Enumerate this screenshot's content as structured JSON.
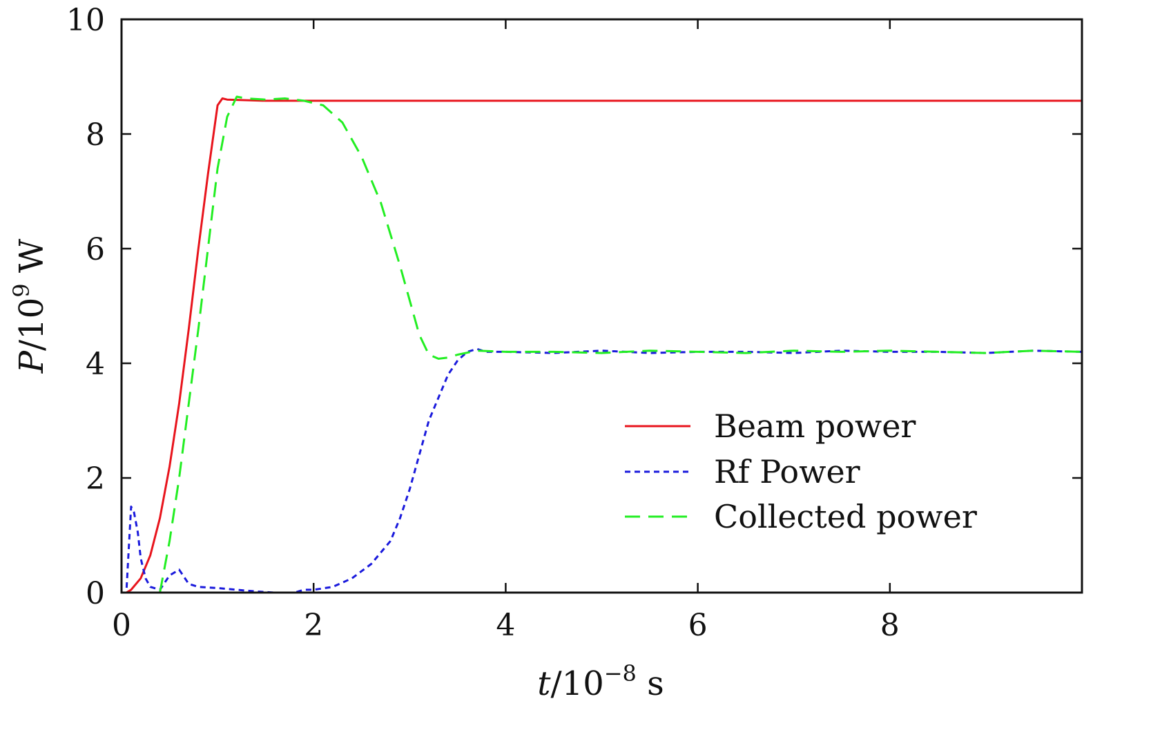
{
  "chart_data": {
    "type": "line",
    "title": "",
    "xlabel": {
      "var": "t",
      "unit": "/10",
      "exp": "−8",
      "suffix": " s"
    },
    "ylabel": {
      "var": "P",
      "unit": "/10",
      "exp": "9",
      "suffix": " W"
    },
    "xlim": [
      0,
      10
    ],
    "ylim": [
      0,
      10
    ],
    "x_ticks": [
      0,
      2,
      4,
      6,
      8
    ],
    "y_ticks": [
      0,
      2,
      4,
      6,
      8,
      10
    ],
    "grid": false,
    "legend_position": "lower-right",
    "series": [
      {
        "name": "Beam power",
        "color": "#e8141c",
        "dash": "solid",
        "x": [
          0,
          0.05,
          0.1,
          0.2,
          0.3,
          0.4,
          0.5,
          0.6,
          0.7,
          0.8,
          0.9,
          1.0,
          1.05,
          1.1,
          1.5,
          2.0,
          3.0,
          4.0,
          5.0,
          6.0,
          7.0,
          8.0,
          9.0,
          10.0
        ],
        "y": [
          0,
          0,
          0.05,
          0.25,
          0.65,
          1.3,
          2.2,
          3.3,
          4.6,
          6.0,
          7.3,
          8.5,
          8.62,
          8.6,
          8.58,
          8.58,
          8.58,
          8.58,
          8.58,
          8.58,
          8.58,
          8.58,
          8.58,
          8.58
        ]
      },
      {
        "name": "Rf Power",
        "color": "#1a1adc",
        "dash": "dotted",
        "x": [
          0,
          0.05,
          0.08,
          0.1,
          0.13,
          0.17,
          0.2,
          0.25,
          0.3,
          0.4,
          0.5,
          0.6,
          0.7,
          0.8,
          1.0,
          1.2,
          1.4,
          1.6,
          1.8,
          1.9,
          2.0,
          2.2,
          2.4,
          2.6,
          2.8,
          2.9,
          3.0,
          3.1,
          3.2,
          3.3,
          3.4,
          3.5,
          3.6,
          3.7,
          3.8,
          4.0,
          4.5,
          5.0,
          5.5,
          6.0,
          6.5,
          7.0,
          7.5,
          8.0,
          8.5,
          9.0,
          9.5,
          10.0
        ],
        "y": [
          0,
          0,
          0.9,
          1.5,
          1.4,
          1.05,
          0.6,
          0.25,
          0.1,
          0.05,
          0.3,
          0.4,
          0.15,
          0.1,
          0.08,
          0.05,
          0.02,
          0.0,
          0.0,
          0.05,
          0.05,
          0.1,
          0.25,
          0.5,
          0.9,
          1.3,
          1.8,
          2.4,
          3.0,
          3.4,
          3.8,
          4.05,
          4.2,
          4.25,
          4.2,
          4.2,
          4.18,
          4.22,
          4.18,
          4.2,
          4.2,
          4.18,
          4.22,
          4.2,
          4.2,
          4.18,
          4.22,
          4.2
        ]
      },
      {
        "name": "Collected power",
        "color": "#22ee22",
        "dash": "dashed",
        "x": [
          0.4,
          0.5,
          0.6,
          0.7,
          0.8,
          0.9,
          1.0,
          1.1,
          1.2,
          1.3,
          1.5,
          1.7,
          1.9,
          2.1,
          2.3,
          2.5,
          2.7,
          2.9,
          3.0,
          3.1,
          3.2,
          3.3,
          3.4,
          3.5,
          3.7,
          4.0,
          4.5,
          5.0,
          5.5,
          6.0,
          6.5,
          7.0,
          7.5,
          8.0,
          8.5,
          9.0,
          9.5,
          10.0
        ],
        "y": [
          0,
          0.9,
          2.0,
          3.3,
          4.6,
          6.0,
          7.4,
          8.3,
          8.65,
          8.62,
          8.6,
          8.62,
          8.58,
          8.5,
          8.2,
          7.6,
          6.8,
          5.7,
          5.1,
          4.5,
          4.15,
          4.08,
          4.1,
          4.15,
          4.22,
          4.2,
          4.2,
          4.18,
          4.22,
          4.2,
          4.18,
          4.22,
          4.2,
          4.22,
          4.2,
          4.18,
          4.22,
          4.2
        ]
      }
    ]
  }
}
